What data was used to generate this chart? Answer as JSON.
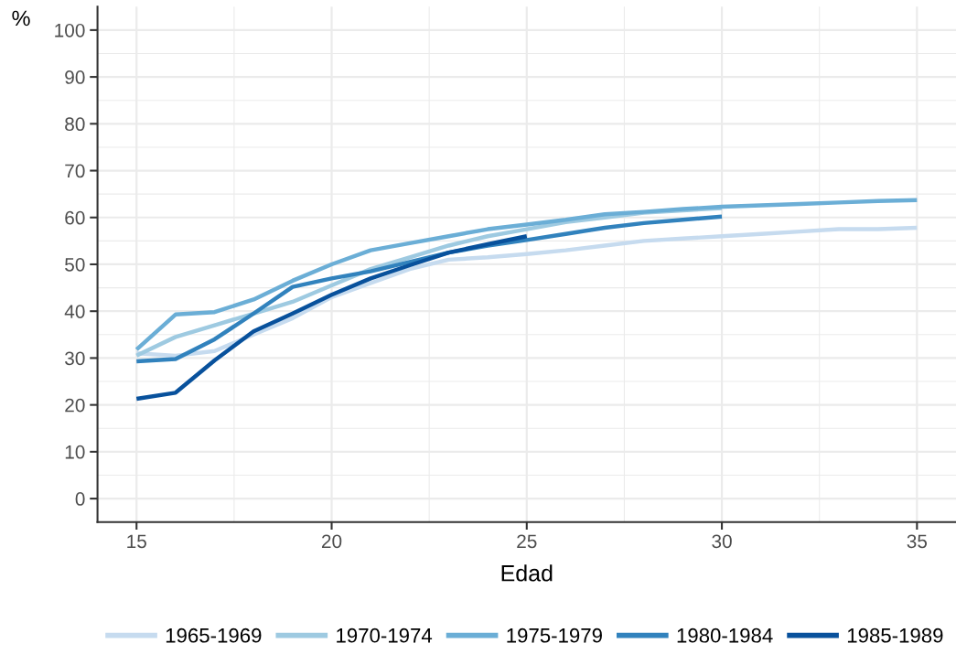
{
  "chart_data": {
    "type": "line",
    "xlabel": "Edad",
    "ylabel": "%",
    "x": [
      15,
      16,
      17,
      18,
      19,
      20,
      21,
      22,
      23,
      24,
      25,
      26,
      27,
      28,
      29,
      30,
      31,
      32,
      33,
      34,
      35
    ],
    "series": [
      {
        "name": "1965-1969",
        "color": "#c6dbef",
        "values": [
          31,
          30.5,
          31.5,
          35,
          38.5,
          43,
          46,
          49,
          51,
          51.5,
          52.2,
          53,
          54,
          55,
          55.5,
          56,
          56.5,
          57,
          57.5,
          57.5,
          57.8
        ]
      },
      {
        "name": "1970-1974",
        "color": "#9ecae1",
        "values": [
          30.5,
          34.5,
          37,
          39.5,
          42,
          45.5,
          49,
          51.5,
          54,
          56,
          57.5,
          59,
          60,
          61,
          61.5,
          62,
          null,
          null,
          null,
          null,
          null
        ]
      },
      {
        "name": "1975-1979",
        "color": "#6baed6",
        "values": [
          31.8,
          39.3,
          39.8,
          42.5,
          46.5,
          50,
          53,
          54.5,
          56,
          57.5,
          58.5,
          59.5,
          60.7,
          61.2,
          61.8,
          62.3,
          62.6,
          62.9,
          63.2,
          63.5,
          63.7
        ]
      },
      {
        "name": "1980-1984",
        "color": "#3182bd",
        "values": [
          29.3,
          29.8,
          34,
          39.5,
          45.2,
          47,
          48.5,
          50.5,
          52.5,
          54,
          55.2,
          56.5,
          57.8,
          58.8,
          59.5,
          60.2,
          null,
          null,
          null,
          null,
          null
        ]
      },
      {
        "name": "1985-1989",
        "color": "#08519c",
        "values": [
          21.3,
          22.6,
          29.5,
          35.7,
          39.5,
          43.5,
          47,
          49.8,
          52.5,
          54.3,
          56,
          null,
          null,
          null,
          null,
          null,
          null,
          null,
          null,
          null,
          null
        ]
      }
    ],
    "xlim": [
      14,
      36
    ],
    "xticks": [
      15,
      20,
      25,
      30,
      35
    ],
    "ylim": [
      -5,
      105
    ],
    "yticks": [
      0,
      10,
      20,
      30,
      40,
      50,
      60,
      70,
      80,
      90,
      100
    ],
    "grid": true,
    "legend": "bottom"
  }
}
